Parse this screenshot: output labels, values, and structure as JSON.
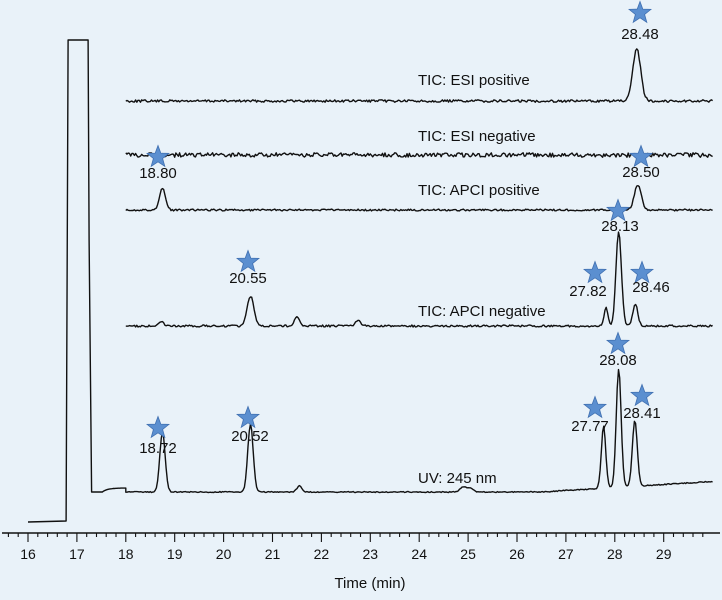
{
  "chart_data": {
    "type": "line",
    "title": "",
    "xlabel": "Time (min)",
    "ylabel": "",
    "xlim": [
      16,
      30
    ],
    "x_ticks": [
      "16",
      "17",
      "18",
      "19",
      "20",
      "21",
      "22",
      "23",
      "24",
      "25",
      "26",
      "27",
      "28",
      "29"
    ],
    "grid": false,
    "series": [
      {
        "name": "TIC: ESI positive",
        "peaks": [
          {
            "label": "28.48",
            "time": 28.48,
            "starred": true
          }
        ]
      },
      {
        "name": "TIC: ESI negative",
        "peaks": []
      },
      {
        "name": "TIC: APCI positive",
        "peaks": [
          {
            "label": "18.80",
            "time": 18.8,
            "starred": true
          },
          {
            "label": "28.50",
            "time": 28.5,
            "starred": true
          }
        ]
      },
      {
        "name": "TIC: APCI negative",
        "peaks": [
          {
            "label": "20.55",
            "time": 20.55,
            "starred": true
          },
          {
            "label": "27.82",
            "time": 27.82,
            "starred": true
          },
          {
            "label": "28.13",
            "time": 28.13,
            "starred": true
          },
          {
            "label": "28.46",
            "time": 28.46,
            "starred": true
          }
        ]
      },
      {
        "name": "UV: 245 nm",
        "peaks": [
          {
            "label": "17",
            "time": 17.0,
            "starred": false
          },
          {
            "label": "18.72",
            "time": 18.72,
            "starred": true
          },
          {
            "label": "20.52",
            "time": 20.52,
            "starred": true
          },
          {
            "label": "27.77",
            "time": 27.77,
            "starred": true
          },
          {
            "label": "28.08",
            "time": 28.08,
            "starred": true
          },
          {
            "label": "28.41",
            "time": 28.41,
            "starred": true
          }
        ]
      }
    ]
  }
}
